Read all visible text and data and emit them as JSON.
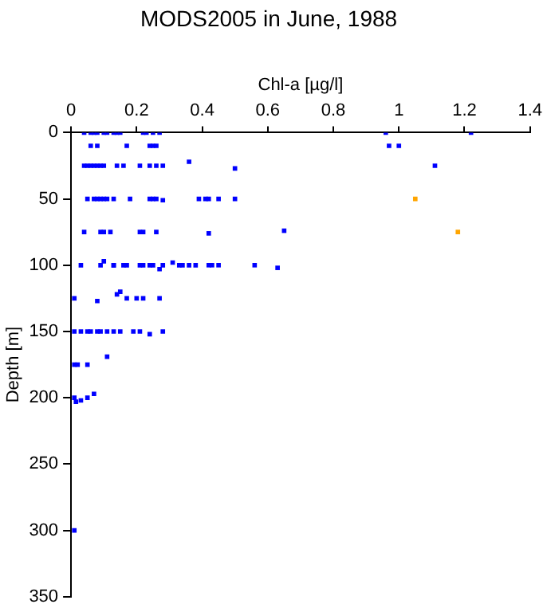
{
  "chart_data": {
    "type": "scatter",
    "title": "MODS2005 in June, 1988",
    "xlabel": "Chl-a [µg/l]",
    "ylabel": "Depth [m]",
    "xlim": [
      0,
      1.4
    ],
    "xticks": [
      0,
      0.2,
      0.4,
      0.6,
      0.8,
      1,
      1.2,
      1.4
    ],
    "ylim": [
      350,
      0
    ],
    "yticks": [
      0,
      50,
      100,
      150,
      200,
      250,
      300,
      350
    ],
    "grid": false,
    "legend": false,
    "marker": "square",
    "series": [
      {
        "color": "#0000ff",
        "x": [
          0.04,
          0.06,
          0.07,
          0.08,
          0.1,
          0.11,
          0.13,
          0.14,
          0.15,
          0.22,
          0.23,
          0.25,
          0.27,
          0.96,
          1.22,
          0.06,
          0.08,
          0.17,
          0.24,
          0.25,
          0.26,
          0.97,
          1.0,
          0.04,
          0.05,
          0.06,
          0.07,
          0.08,
          0.09,
          0.1,
          0.14,
          0.16,
          0.21,
          0.24,
          0.26,
          0.28,
          0.36,
          0.5,
          1.11,
          0.05,
          0.07,
          0.08,
          0.09,
          0.1,
          0.11,
          0.13,
          0.18,
          0.24,
          0.25,
          0.26,
          0.28,
          0.39,
          0.41,
          0.42,
          0.45,
          0.5,
          0.04,
          0.09,
          0.1,
          0.12,
          0.21,
          0.22,
          0.26,
          0.42,
          0.65,
          0.03,
          0.09,
          0.1,
          0.13,
          0.13,
          0.16,
          0.17,
          0.21,
          0.22,
          0.24,
          0.25,
          0.27,
          0.28,
          0.31,
          0.33,
          0.34,
          0.36,
          0.38,
          0.42,
          0.43,
          0.45,
          0.56,
          0.63,
          0.01,
          0.08,
          0.14,
          0.15,
          0.17,
          0.2,
          0.22,
          0.27,
          0.01,
          0.03,
          0.05,
          0.06,
          0.08,
          0.09,
          0.11,
          0.13,
          0.15,
          0.19,
          0.21,
          0.24,
          0.28,
          0.11,
          0.01,
          0.02,
          0.05,
          0.01,
          0.015,
          0.03,
          0.05,
          0.07,
          0.01
        ],
        "values": [
          0,
          0,
          0,
          0,
          0,
          0,
          0,
          0,
          0,
          0,
          0,
          0,
          0,
          0,
          0,
          10,
          10,
          10,
          10,
          10,
          10,
          10,
          10,
          25,
          25,
          25,
          25,
          25,
          25,
          25,
          25,
          25,
          25,
          25,
          25,
          25,
          22,
          27,
          25,
          50,
          50,
          50,
          50,
          50,
          50,
          50,
          50,
          50,
          50,
          50,
          51,
          50,
          50,
          50,
          50,
          50,
          75,
          75,
          75,
          75,
          75,
          75,
          75,
          76,
          74,
          100,
          100,
          97,
          100,
          100,
          100,
          100,
          100,
          100,
          100,
          100,
          103,
          100,
          98,
          100,
          100,
          100,
          100,
          100,
          100,
          100,
          100,
          102,
          125,
          127,
          122,
          120,
          125,
          125,
          125,
          125,
          150,
          150,
          150,
          150,
          150,
          150,
          150,
          150,
          150,
          150,
          150,
          152,
          150,
          169,
          175,
          175,
          175,
          200,
          203,
          202,
          200,
          197,
          300
        ]
      },
      {
        "color": "#ffa500",
        "x": [
          1.05,
          1.18
        ],
        "values": [
          50,
          75
        ]
      }
    ]
  }
}
